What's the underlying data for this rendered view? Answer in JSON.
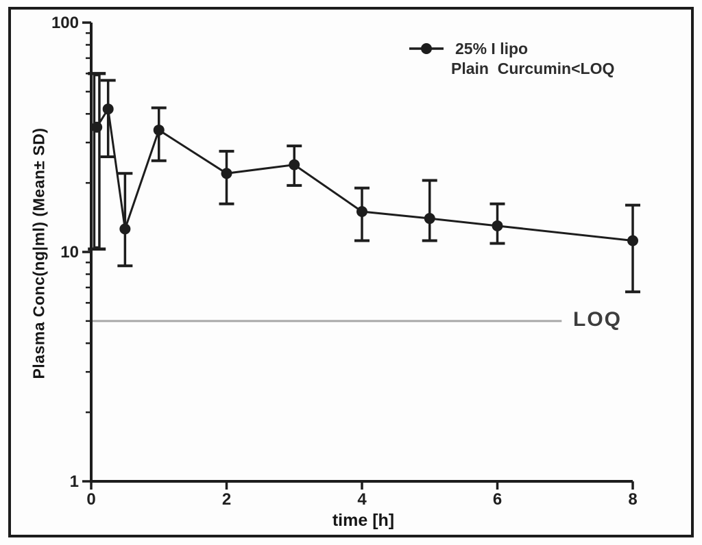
{
  "figure": {
    "kind": "pharmacokinetic-semilog-plot",
    "frame_color": "#1c1c1c",
    "background": "#fdfdfd"
  },
  "chart_data": {
    "type": "line",
    "title": "",
    "xlabel": "time [h]",
    "ylabel": "Plasma Conc(ng|ml) (Mean± SD)",
    "y_scale": "log",
    "xlim": [
      0,
      8.2
    ],
    "ylim": [
      1,
      100
    ],
    "grid": false,
    "legend_position": "top-right",
    "x_ticks": [
      0,
      2,
      4,
      6,
      8
    ],
    "y_ticks": [
      100,
      10,
      1
    ],
    "axis_tick_labels": {
      "x": [
        "0",
        "2",
        "4",
        "6",
        "8"
      ],
      "y": [
        "100",
        "10",
        "1"
      ]
    },
    "series": [
      {
        "name": "25% I lipo",
        "marker": "filled-circle",
        "color": "#1d1d1d",
        "x": [
          0.083,
          0.25,
          0.5,
          1,
          2,
          3,
          4,
          5,
          6,
          8
        ],
        "mean": [
          35,
          42,
          12.6,
          34,
          22,
          24,
          15,
          14,
          13,
          11.2
        ],
        "sd_upper": [
          60,
          56,
          22,
          42.5,
          27.5,
          29,
          19,
          20.5,
          16.2,
          16
        ],
        "sd_lower": [
          10.3,
          26,
          8.7,
          25,
          16.2,
          19.5,
          11.2,
          11.2,
          10.9,
          6.7
        ],
        "double_error_bar_at_x": 0.083
      }
    ],
    "loq_line": {
      "value": 5,
      "label": "LOQ",
      "x_start": 0,
      "x_end": 6.95,
      "color": "#a8a8a8"
    },
    "legend": {
      "line1": "25% I lipo",
      "line2": "Plain  Curcumin<LOQ"
    }
  }
}
